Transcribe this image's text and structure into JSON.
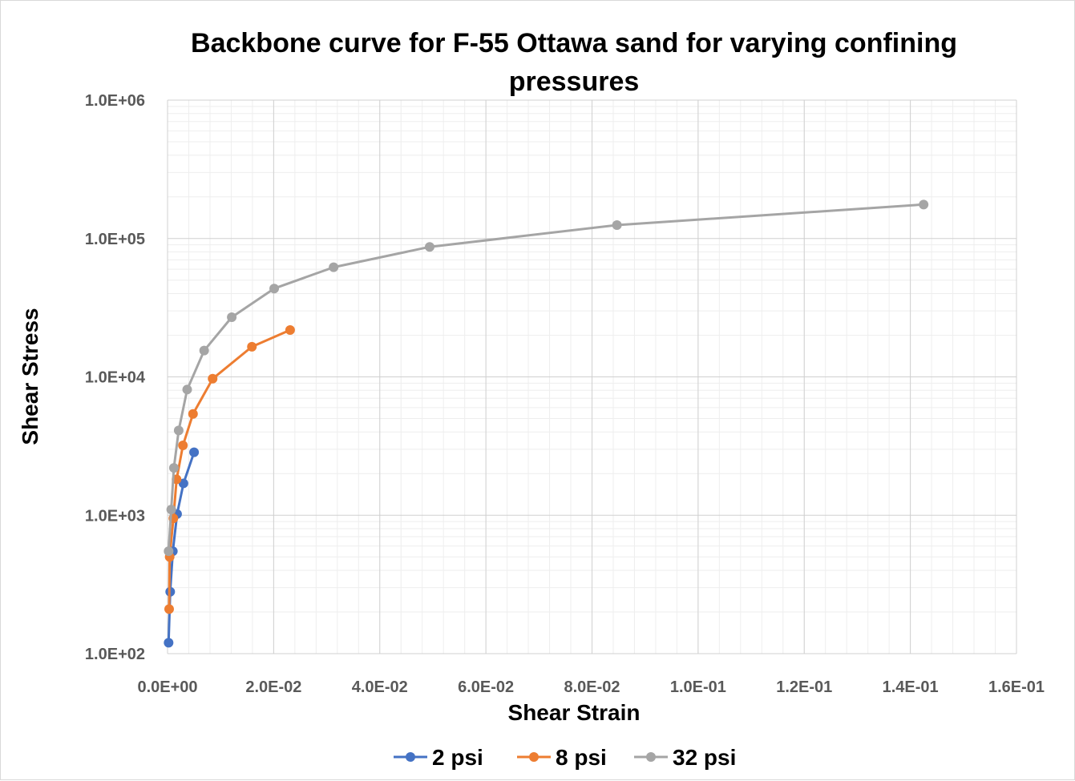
{
  "chart_data": {
    "type": "scatter",
    "title_line1": "Backbone curve for F-55 Ottawa sand for varying confining",
    "title_line2": "pressures",
    "xlabel": "Shear Strain",
    "ylabel": "Shear Stress",
    "xlim": [
      0,
      0.16
    ],
    "ylim": [
      100,
      1000000
    ],
    "y_scale": "log",
    "grid": true,
    "legend_position": "bottom",
    "x_ticks": [
      0,
      0.02,
      0.04,
      0.06,
      0.08,
      0.1,
      0.12,
      0.14,
      0.16
    ],
    "x_tick_labels": [
      "0.0E+00",
      "2.0E-02",
      "4.0E-02",
      "6.0E-02",
      "8.0E-02",
      "1.0E-01",
      "1.2E-01",
      "1.4E-01",
      "1.6E-01"
    ],
    "y_ticks": [
      100,
      1000,
      10000,
      100000,
      1000000
    ],
    "y_tick_labels": [
      "1.0E+02",
      "1.0E+03",
      "1.0E+04",
      "1.0E+05",
      "1.0E+06"
    ],
    "series": [
      {
        "name": "2 psi",
        "color": "#4472C4",
        "x": [
          0.0002,
          0.0005,
          0.001,
          0.0018,
          0.003,
          0.005
        ],
        "y": [
          120,
          280,
          550,
          1020,
          1700,
          2850
        ]
      },
      {
        "name": "8 psi",
        "color": "#ED7D31",
        "x": [
          0.0003,
          0.0004,
          0.0011,
          0.0017,
          0.0029,
          0.0048,
          0.0085,
          0.0159,
          0.0231
        ],
        "y": [
          210,
          500,
          950,
          1820,
          3200,
          5400,
          9700,
          16500,
          21800
        ]
      },
      {
        "name": "32 psi",
        "color": "#A5A5A5",
        "x": [
          0.0002,
          0.0007,
          0.0012,
          0.0021,
          0.0037,
          0.0069,
          0.0121,
          0.0201,
          0.0313,
          0.0494,
          0.0847,
          0.1425
        ],
        "y": [
          550,
          1100,
          2200,
          4100,
          8100,
          15500,
          27000,
          43500,
          62000,
          87000,
          125000,
          176000
        ]
      }
    ]
  }
}
